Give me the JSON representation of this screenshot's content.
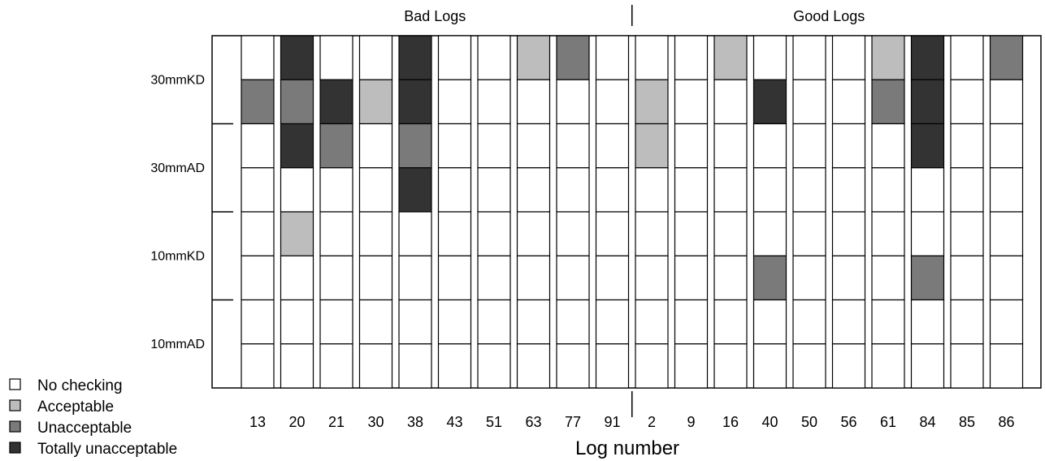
{
  "chart_data": {
    "type": "heatmap",
    "xlabel": "Log number",
    "groups": [
      {
        "name": "Bad Logs",
        "logs": [
          "13",
          "20",
          "21",
          "30",
          "38",
          "43",
          "51",
          "63",
          "77",
          "91"
        ]
      },
      {
        "name": "Good Logs",
        "logs": [
          "2",
          "9",
          "16",
          "40",
          "50",
          "56",
          "61",
          "84",
          "85",
          "86"
        ]
      }
    ],
    "row_groups": [
      "30mmKD",
      "30mmAD",
      "10mmKD",
      "10mmAD"
    ],
    "rows_per_group": 2,
    "legend": [
      {
        "level": 0,
        "label": "No checking",
        "color": "#ffffff"
      },
      {
        "level": 1,
        "label": "Acceptable",
        "color": "#bdbdbd"
      },
      {
        "level": 2,
        "label": "Unacceptable",
        "color": "#7a7a7a"
      },
      {
        "level": 3,
        "label": "Totally unacceptable",
        "color": "#333333"
      }
    ],
    "legend_placement": "bottom-left",
    "columns": [
      "13",
      "20",
      "21",
      "30",
      "38",
      "43",
      "51",
      "63",
      "77",
      "91",
      "2",
      "9",
      "16",
      "40",
      "50",
      "56",
      "61",
      "84",
      "85",
      "86"
    ],
    "values": [
      [
        0,
        3,
        0,
        0,
        3,
        0,
        0,
        1,
        2,
        0,
        0,
        0,
        1,
        0,
        0,
        0,
        1,
        3,
        0,
        2
      ],
      [
        2,
        2,
        3,
        1,
        3,
        0,
        0,
        0,
        0,
        0,
        1,
        0,
        0,
        3,
        0,
        0,
        2,
        3,
        0,
        0
      ],
      [
        0,
        3,
        2,
        0,
        2,
        0,
        0,
        0,
        0,
        0,
        1,
        0,
        0,
        0,
        0,
        0,
        0,
        3,
        0,
        0
      ],
      [
        0,
        0,
        0,
        0,
        3,
        0,
        0,
        0,
        0,
        0,
        0,
        0,
        0,
        0,
        0,
        0,
        0,
        0,
        0,
        0
      ],
      [
        0,
        1,
        0,
        0,
        0,
        0,
        0,
        0,
        0,
        0,
        0,
        0,
        0,
        0,
        0,
        0,
        0,
        0,
        0,
        0
      ],
      [
        0,
        0,
        0,
        0,
        0,
        0,
        0,
        0,
        0,
        0,
        0,
        0,
        0,
        2,
        0,
        0,
        0,
        2,
        0,
        0
      ],
      [
        0,
        0,
        0,
        0,
        0,
        0,
        0,
        0,
        0,
        0,
        0,
        0,
        0,
        0,
        0,
        0,
        0,
        0,
        0,
        0
      ],
      [
        0,
        0,
        0,
        0,
        0,
        0,
        0,
        0,
        0,
        0,
        0,
        0,
        0,
        0,
        0,
        0,
        0,
        0,
        0,
        0
      ]
    ]
  }
}
